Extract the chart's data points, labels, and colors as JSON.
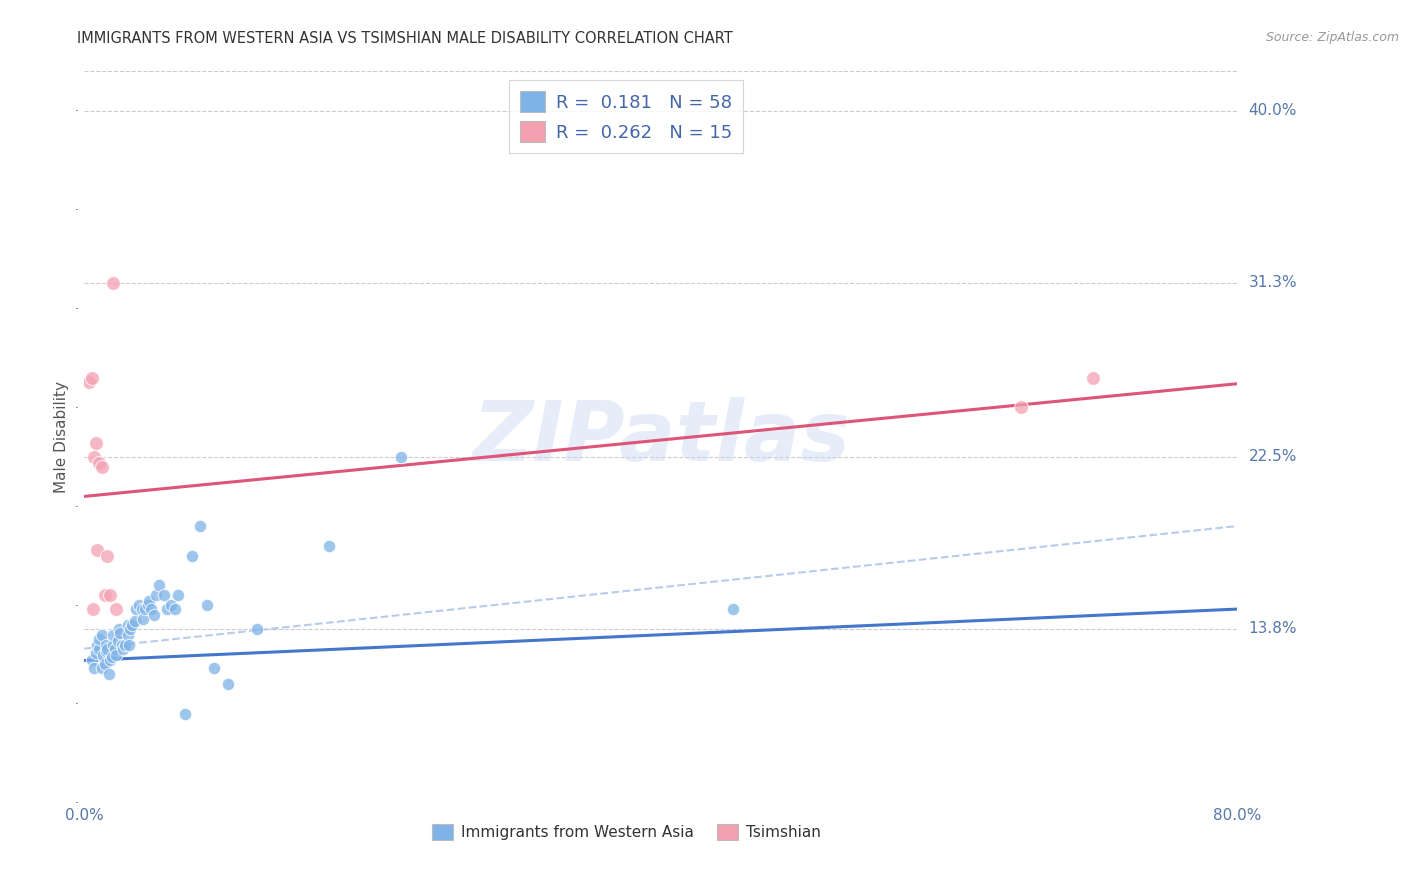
{
  "title": "IMMIGRANTS FROM WESTERN ASIA VS TSIMSHIAN MALE DISABILITY CORRELATION CHART",
  "source": "Source: ZipAtlas.com",
  "ylabel": "Male Disability",
  "xlim": [
    0.0,
    0.8
  ],
  "ylim": [
    0.05,
    0.42
  ],
  "xticks": [
    0.0,
    0.1,
    0.2,
    0.3,
    0.4,
    0.5,
    0.6,
    0.7,
    0.8
  ],
  "xtick_labels": [
    "0.0%",
    "",
    "",
    "",
    "",
    "",
    "",
    "",
    "80.0%"
  ],
  "yticks": [
    0.138,
    0.225,
    0.313,
    0.4
  ],
  "ytick_labels": [
    "13.8%",
    "22.5%",
    "31.3%",
    "40.0%"
  ],
  "blue_color": "#7EB3E8",
  "pink_color": "#F4A0B0",
  "trend_blue_color": "#4477CC",
  "trend_pink_color": "#DD5577",
  "watermark": "ZIPatlas",
  "legend_r_blue": "0.181",
  "legend_n_blue": "58",
  "legend_r_pink": "0.262",
  "legend_n_pink": "15",
  "blue_scatter_x": [
    0.005,
    0.007,
    0.008,
    0.009,
    0.01,
    0.01,
    0.012,
    0.012,
    0.013,
    0.014,
    0.015,
    0.015,
    0.016,
    0.017,
    0.018,
    0.019,
    0.02,
    0.02,
    0.021,
    0.022,
    0.023,
    0.024,
    0.025,
    0.026,
    0.027,
    0.028,
    0.03,
    0.03,
    0.031,
    0.032,
    0.033,
    0.035,
    0.036,
    0.038,
    0.04,
    0.041,
    0.042,
    0.044,
    0.045,
    0.046,
    0.048,
    0.05,
    0.052,
    0.055,
    0.057,
    0.06,
    0.063,
    0.065,
    0.07,
    0.075,
    0.08,
    0.085,
    0.09,
    0.1,
    0.12,
    0.17,
    0.22,
    0.45
  ],
  "blue_scatter_y": [
    0.122,
    0.118,
    0.126,
    0.13,
    0.128,
    0.133,
    0.135,
    0.118,
    0.125,
    0.12,
    0.127,
    0.13,
    0.128,
    0.115,
    0.122,
    0.124,
    0.13,
    0.135,
    0.128,
    0.125,
    0.132,
    0.138,
    0.136,
    0.13,
    0.128,
    0.13,
    0.14,
    0.135,
    0.13,
    0.138,
    0.14,
    0.142,
    0.148,
    0.15,
    0.148,
    0.143,
    0.148,
    0.15,
    0.152,
    0.148,
    0.145,
    0.155,
    0.16,
    0.155,
    0.148,
    0.15,
    0.148,
    0.155,
    0.095,
    0.175,
    0.19,
    0.15,
    0.118,
    0.11,
    0.138,
    0.18,
    0.225,
    0.148
  ],
  "pink_scatter_x": [
    0.003,
    0.005,
    0.006,
    0.007,
    0.008,
    0.009,
    0.01,
    0.012,
    0.014,
    0.016,
    0.018,
    0.02,
    0.022,
    0.65,
    0.7
  ],
  "pink_scatter_y": [
    0.263,
    0.265,
    0.148,
    0.225,
    0.232,
    0.178,
    0.222,
    0.22,
    0.155,
    0.175,
    0.155,
    0.313,
    0.148,
    0.25,
    0.265
  ],
  "blue_trend_x0": 0.0,
  "blue_trend_y0": 0.122,
  "blue_trend_x1": 0.8,
  "blue_trend_y1": 0.148,
  "pink_trend_x0": 0.0,
  "pink_trend_y0": 0.205,
  "pink_trend_x1": 0.8,
  "pink_trend_y1": 0.262,
  "dashed_trend_x0": 0.0,
  "dashed_trend_y0": 0.128,
  "dashed_trend_x1": 0.8,
  "dashed_trend_y1": 0.19
}
